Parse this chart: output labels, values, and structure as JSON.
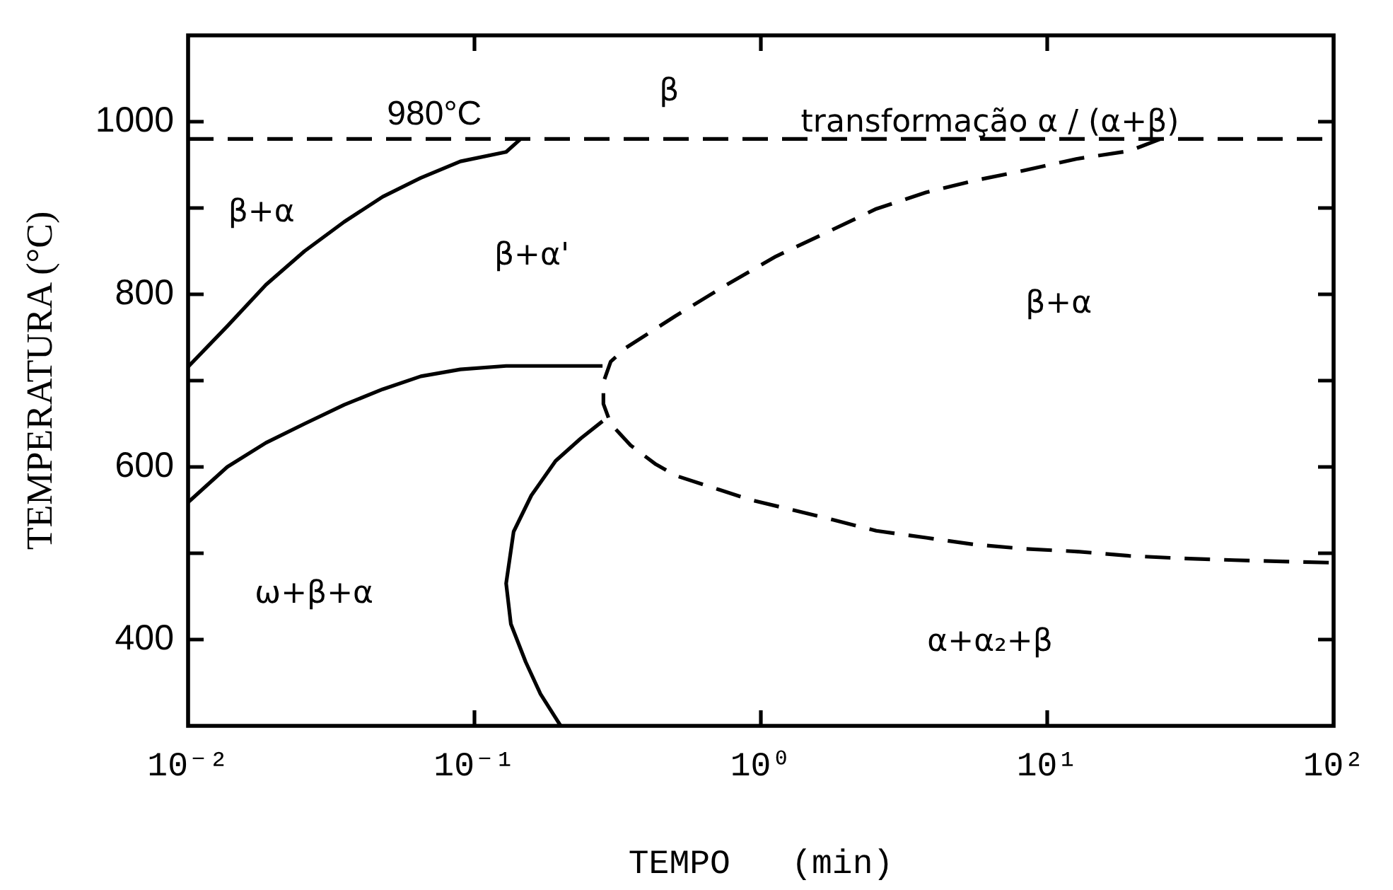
{
  "chart_data": {
    "type": "line",
    "log": "x",
    "xlabel": "TEMPO   (min)",
    "ylabel": "TEMPERATURA (°C)",
    "xlim": [
      0.01,
      100
    ],
    "xticks": [
      {
        "value": 0.01,
        "label": "10⁻²"
      },
      {
        "value": 0.1,
        "label": "10⁻¹"
      },
      {
        "value": 1,
        "label": "10⁰"
      },
      {
        "value": 10,
        "label": "10¹"
      },
      {
        "value": 100,
        "label": "10²"
      }
    ],
    "ylim": [
      300,
      1100
    ],
    "yticks": [
      400,
      {
        "value": 500,
        "label": null
      },
      600,
      {
        "value": 700,
        "label": null
      },
      800,
      {
        "value": 900,
        "label": null
      },
      1000
    ],
    "series": [
      {
        "color": "#000000",
        "line_style": "solid",
        "x": [
          0.01,
          0.0137,
          0.0187,
          0.0255,
          0.0351,
          0.0478,
          0.065,
          0.0893,
          0.129,
          0.145
        ],
        "values": [
          716,
          763,
          811,
          850,
          884,
          913,
          935,
          954,
          965,
          980
        ]
      },
      {
        "color": "#000000",
        "line_style": "solid",
        "x": [
          0.01,
          0.0137,
          0.0187,
          0.0255,
          0.0351,
          0.0478,
          0.065,
          0.0893,
          0.129,
          0.28
        ],
        "values": [
          559,
          600,
          628,
          650,
          672,
          690,
          705,
          713,
          717,
          717
        ]
      },
      {
        "color": "#000000",
        "line_style": "solid",
        "x": [
          0.28,
          0.235,
          0.192,
          0.158,
          0.137,
          0.129,
          0.134,
          0.151,
          0.17,
          0.2
        ],
        "values": [
          653,
          633,
          607,
          567,
          525,
          465,
          418,
          374,
          337,
          300
        ]
      },
      {
        "color": "#000000",
        "line_style": "dashed",
        "x": [
          24.9,
          19.3,
          12.7,
          8.45,
          5.61,
          3.77,
          2.53,
          1.68,
          1.13,
          0.759,
          0.504,
          0.338,
          0.299,
          0.282,
          0.282,
          0.299,
          0.351,
          0.43,
          0.504,
          0.918,
          1.68,
          2.53,
          3.77,
          5.61,
          8.45,
          12.7,
          19.3,
          29.7,
          45.1,
          100
        ],
        "values": [
          980,
          966,
          957,
          944,
          932,
          918,
          899,
          871,
          844,
          811,
          775,
          738,
          722,
          698,
          673,
          650,
          625,
          603,
          590,
          562,
          541,
          526,
          518,
          510,
          505,
          502,
          497,
          494,
          492,
          489
        ]
      }
    ],
    "ref_lines": [
      {
        "axis": "y",
        "value": 980,
        "label": "980°C",
        "line_style": "dashed",
        "color": "#000000"
      }
    ],
    "annotations": [
      "β",
      "transformação α / (α+β)",
      "β+α",
      "β+α'",
      "β+α",
      "ω+β+α",
      "α+α₂+β"
    ]
  }
}
